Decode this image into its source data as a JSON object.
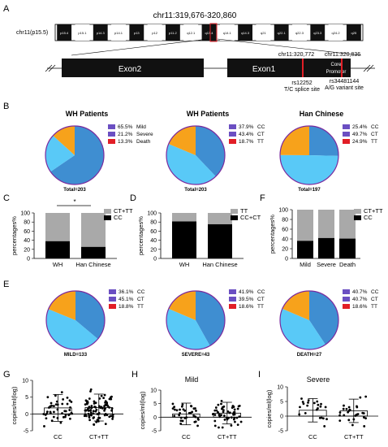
{
  "panelA": {
    "letter": "A",
    "title": "chr11:319,676-320,860",
    "chr_label": "chr11(p15.5)",
    "bands": [
      "p15.4",
      "p15.1",
      "p14.3",
      "p14.1",
      "p13",
      "p12",
      "p11.2",
      "q12.1",
      "q13.4",
      "q14.1",
      "q14.3",
      "q21",
      "q22.1",
      "q22.3",
      "q23.3",
      "q24.2",
      "q25"
    ],
    "exon2": "Exon2",
    "exon1": "Exon1",
    "core": "Core",
    "promoter": "Promoter",
    "pos1": "chr11:320,772",
    "pos2": "chr11:320,836",
    "rs1_id": "rs12252",
    "rs1_site": "T/C splice site",
    "rs2_id": "rs34481144",
    "rs2_site": "A/G variant site"
  },
  "panelB": {
    "letter": "B",
    "pies": [
      {
        "title": "WH Patients",
        "total": "Total=203",
        "legend": [
          {
            "pct": "65.5%",
            "label": "Mild"
          },
          {
            "pct": "21.2%",
            "label": "Severe"
          },
          {
            "pct": "13.3%",
            "label": "Death"
          }
        ]
      },
      {
        "title": "WH Patients",
        "total": "Total=203",
        "legend": [
          {
            "pct": "37.9%",
            "label": "CC"
          },
          {
            "pct": "43.4%",
            "label": "CT"
          },
          {
            "pct": "18.7%",
            "label": "TT"
          }
        ]
      },
      {
        "title": "Han Chinese",
        "total": "Total=197",
        "legend": [
          {
            "pct": "25.4%",
            "label": "CC"
          },
          {
            "pct": "49.7%",
            "label": "CT"
          },
          {
            "pct": "24.9%",
            "label": "TT"
          }
        ]
      }
    ]
  },
  "panelC": {
    "letter": "C",
    "ylabel": "percentages%",
    "legend": [
      "CT+TT",
      "CC"
    ],
    "categories": [
      "WH",
      "Han Chinese"
    ],
    "cc": [
      37.9,
      25.4
    ],
    "star": "*",
    "ticks": [
      "0",
      "20",
      "40",
      "60",
      "80",
      "100"
    ]
  },
  "panelD": {
    "letter": "D",
    "ylabel": "percentages%",
    "legend": [
      "TT",
      "CC+CT"
    ],
    "categories": [
      "WH",
      "Han Chinese"
    ],
    "bottom": [
      81.3,
      75.1
    ],
    "ticks": [
      "0",
      "20",
      "40",
      "60",
      "80",
      "100"
    ]
  },
  "panelF": {
    "letter": "F",
    "ylabel": "percentages%",
    "legend": [
      "CT+TT",
      "CC"
    ],
    "categories": [
      "Mild",
      "Severe",
      "Death"
    ],
    "cc": [
      36.1,
      41.9,
      40.7
    ],
    "ticks": [
      "0",
      "20",
      "40",
      "60",
      "80",
      "100"
    ]
  },
  "panelE": {
    "letter": "E",
    "pies": [
      {
        "total": "MILD=133",
        "legend": [
          {
            "pct": "36.1%",
            "label": "CC"
          },
          {
            "pct": "45.1%",
            "label": "CT"
          },
          {
            "pct": "18.8%",
            "label": "TT"
          }
        ]
      },
      {
        "total": "SEVERE=43",
        "legend": [
          {
            "pct": "41.9%",
            "label": "CC"
          },
          {
            "pct": "39.5%",
            "label": "CT"
          },
          {
            "pct": "18.6%",
            "label": "TT"
          }
        ]
      },
      {
        "total": "DEATH=27",
        "legend": [
          {
            "pct": "40.7%",
            "label": "CC"
          },
          {
            "pct": "40.7%",
            "label": "CT"
          },
          {
            "pct": "18.6%",
            "label": "TT"
          }
        ]
      }
    ]
  },
  "panelG": {
    "letter": "G",
    "title": "",
    "ylabel": "copies/ml(log)",
    "categories": [
      "CC",
      "CT+TT"
    ],
    "ticks": [
      "-5",
      "0",
      "5",
      "10"
    ]
  },
  "panelH": {
    "letter": "H",
    "title": "Mild",
    "ylabel": "copies/ml(log)",
    "categories": [
      "CC",
      "CT+TT"
    ],
    "ticks": [
      "-5",
      "0",
      "5",
      "10"
    ]
  },
  "panelI": {
    "letter": "I",
    "title": "Severe",
    "ylabel": "copies/ml(log)",
    "categories": [
      "CC",
      "CT+TT"
    ],
    "ticks": [
      "-5",
      "0",
      "5",
      "10"
    ]
  },
  "colors": {
    "c1": "#3f8ed1",
    "c2": "#59c9f7",
    "c3": "#f7a21b",
    "gray": "#a9a9a9",
    "black": "#000000",
    "red": "#e21e26",
    "pieEdge": "#7a2a9e",
    "legendBox": "#6b4fc2"
  },
  "chart_data": [
    {
      "type": "pie",
      "title": "WH Patients",
      "values": [
        65.5,
        21.2,
        13.3
      ],
      "labels": [
        "Mild",
        "Severe",
        "Death"
      ]
    },
    {
      "type": "pie",
      "title": "WH Patients",
      "values": [
        37.9,
        43.4,
        18.7
      ],
      "labels": [
        "CC",
        "CT",
        "TT"
      ]
    },
    {
      "type": "pie",
      "title": "Han Chinese",
      "values": [
        25.4,
        49.7,
        24.9
      ],
      "labels": [
        "CC",
        "CT",
        "TT"
      ]
    },
    {
      "type": "bar",
      "categories": [
        "WH",
        "Han Chinese"
      ],
      "series": [
        {
          "name": "CC",
          "values": [
            37.9,
            25.4
          ]
        },
        {
          "name": "CT+TT",
          "values": [
            62.1,
            74.6
          ]
        }
      ],
      "ylabel": "percentages%",
      "ylim": [
        0,
        100
      ]
    },
    {
      "type": "bar",
      "categories": [
        "WH",
        "Han Chinese"
      ],
      "series": [
        {
          "name": "CC+CT",
          "values": [
            81.3,
            75.1
          ]
        },
        {
          "name": "TT",
          "values": [
            18.7,
            24.9
          ]
        }
      ],
      "ylabel": "percentages%",
      "ylim": [
        0,
        100
      ]
    },
    {
      "type": "bar",
      "categories": [
        "Mild",
        "Severe",
        "Death"
      ],
      "series": [
        {
          "name": "CC",
          "values": [
            36.1,
            41.9,
            40.7
          ]
        },
        {
          "name": "CT+TT",
          "values": [
            63.9,
            58.1,
            59.3
          ]
        }
      ],
      "ylabel": "percentages%",
      "ylim": [
        0,
        100
      ]
    },
    {
      "type": "pie",
      "values": [
        36.1,
        45.1,
        18.8
      ],
      "labels": [
        "CC",
        "CT",
        "TT"
      ]
    },
    {
      "type": "pie",
      "values": [
        41.9,
        39.5,
        18.6
      ],
      "labels": [
        "CC",
        "CT",
        "TT"
      ]
    },
    {
      "type": "pie",
      "values": [
        40.7,
        40.7,
        18.6
      ],
      "labels": [
        "CC",
        "CT",
        "TT"
      ]
    },
    {
      "type": "scatter",
      "categories": [
        "CC",
        "CT+TT"
      ],
      "ylabel": "copies/ml(log)",
      "ylim": [
        -5,
        10
      ],
      "means": [
        1.8,
        1.9
      ]
    },
    {
      "type": "scatter",
      "title": "Mild",
      "categories": [
        "CC",
        "CT+TT"
      ],
      "ylabel": "copies/ml(log)",
      "ylim": [
        -5,
        10
      ],
      "means": [
        1.2,
        1.5
      ]
    },
    {
      "type": "scatter",
      "title": "Severe",
      "categories": [
        "CC",
        "CT+TT"
      ],
      "ylabel": "copies/ml(log)",
      "ylim": [
        -5,
        10
      ],
      "means": [
        2.0,
        1.8
      ]
    }
  ]
}
